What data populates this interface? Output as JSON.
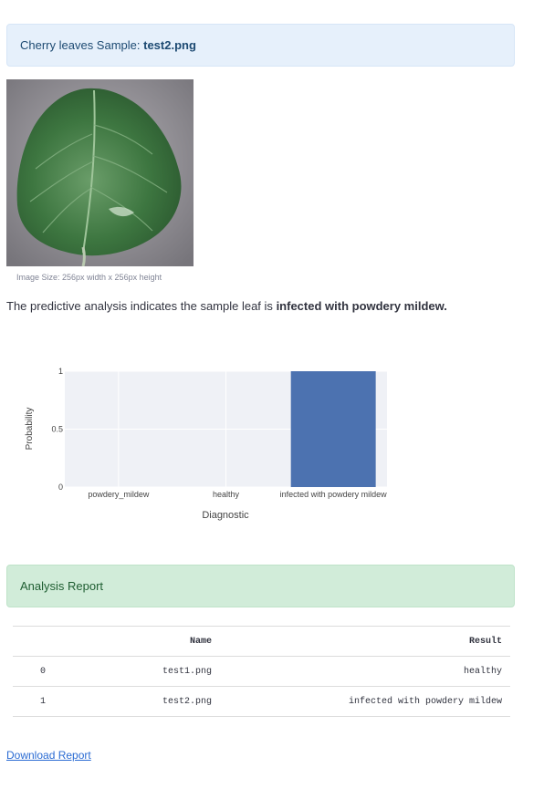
{
  "sample_box": {
    "prefix": "Cherry leaves Sample:",
    "filename": "test2.png"
  },
  "image": {
    "caption": "Image Size: 256px width x 256px height"
  },
  "prediction": {
    "text": "The predictive analysis indicates the sample leaf is",
    "result": "infected with powdery mildew."
  },
  "chart_data": {
    "type": "bar",
    "categories": [
      "powdery_mildew",
      "healthy",
      "infected with powdery mildew"
    ],
    "values": [
      0,
      0,
      1
    ],
    "xlabel": "Diagnostic",
    "ylabel": "Probability",
    "ylim": [
      0,
      1
    ],
    "yticks": [
      "0",
      "0.5",
      "1"
    ],
    "grid": true,
    "colors": {
      "bar": "#4c72b0",
      "plot_bg": "#eff1f6",
      "grid": "#ffffff"
    }
  },
  "report": {
    "title": "Analysis Report",
    "columns": [
      "",
      "Name",
      "Result"
    ],
    "rows": [
      [
        "0",
        "test1.png",
        "healthy"
      ],
      [
        "1",
        "test2.png",
        "infected with powdery mildew"
      ]
    ]
  },
  "download": {
    "label": "Download Report"
  },
  "colors": {
    "info_bg": "#e6f0fb",
    "success_bg": "#d1ecd9",
    "link": "#2a6bd3"
  }
}
